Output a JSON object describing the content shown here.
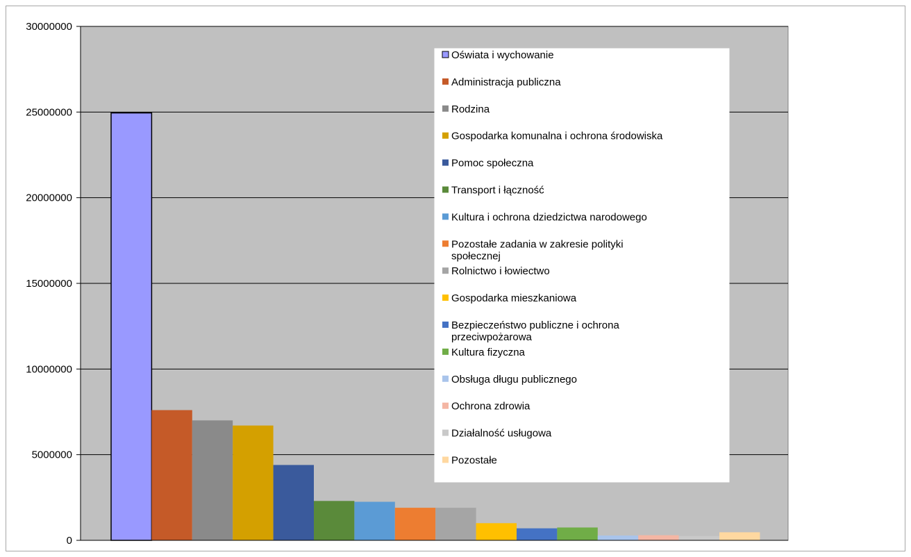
{
  "chart_data": {
    "type": "bar",
    "title": "",
    "xlabel": "",
    "ylabel": "",
    "ylim": [
      0,
      30000000
    ],
    "yticks": [
      0,
      5000000,
      10000000,
      15000000,
      20000000,
      25000000,
      30000000
    ],
    "ytick_labels": [
      "0",
      "5000000",
      "10000000",
      "15000000",
      "20000000",
      "25000000",
      "30000000"
    ],
    "grid": true,
    "legend_position": "top-right",
    "plot_background": "#c0c0c0",
    "series": [
      {
        "name": "Oświata i wychowanie",
        "value": 24950000,
        "color": "#9999ff"
      },
      {
        "name": "Administracja publiczna",
        "value": 7600000,
        "color": "#c55a28"
      },
      {
        "name": "Rodzina",
        "value": 7000000,
        "color": "#8a8a8a"
      },
      {
        "name": "Gospodarka komunalna i ochrona środowiska",
        "value": 6700000,
        "color": "#d4a000"
      },
      {
        "name": "Pomoc społeczna",
        "value": 4400000,
        "color": "#3a5a9c"
      },
      {
        "name": "Transport i łączność",
        "value": 2300000,
        "color": "#5a8a3a"
      },
      {
        "name": "Kultura i ochrona dziedzictwa narodowego",
        "value": 2250000,
        "color": "#5b9bd5"
      },
      {
        "name": "Pozostałe zadania w zakresie polityki społecznej",
        "value": 1900000,
        "color": "#ed7d31"
      },
      {
        "name": "Rolnictwo i łowiectwo",
        "value": 1900000,
        "color": "#a5a5a5"
      },
      {
        "name": "Gospodarka mieszkaniowa",
        "value": 1000000,
        "color": "#ffc000"
      },
      {
        "name": "Bezpieczeństwo publiczne i ochrona przeciwpożarowa",
        "value": 700000,
        "color": "#4472c4"
      },
      {
        "name": "Kultura fizyczna",
        "value": 750000,
        "color": "#70ad47"
      },
      {
        "name": "Obsługa długu publicznego",
        "value": 280000,
        "color": "#a9c4eb"
      },
      {
        "name": "Ochrona zdrowia",
        "value": 300000,
        "color": "#f4b6a4"
      },
      {
        "name": "Działalność usługowa",
        "value": 250000,
        "color": "#c9c9c9"
      },
      {
        "name": "Pozostałe",
        "value": 470000,
        "color": "#ffd8a0"
      }
    ]
  }
}
